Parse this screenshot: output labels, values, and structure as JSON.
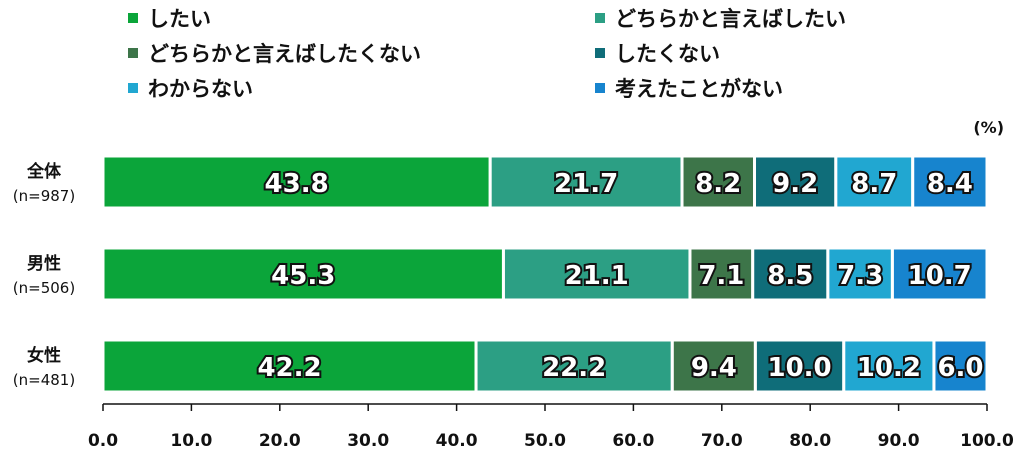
{
  "chart_data": {
    "type": "bar",
    "orientation": "horizontal",
    "stacked": true,
    "unit": "(%)",
    "categories": [
      {
        "name": "全体",
        "sub": "(n=987)"
      },
      {
        "name": "男性",
        "sub": "(n=506)"
      },
      {
        "name": "女性",
        "sub": "(n=481)"
      }
    ],
    "series": [
      {
        "name": "したい",
        "color": "#0ba53a",
        "values": [
          43.8,
          45.3,
          42.2
        ]
      },
      {
        "name": "どちらかと言えばしたい",
        "color": "#2c9f84",
        "values": [
          21.7,
          21.1,
          22.2
        ]
      },
      {
        "name": "どちらかと言えばしたくない",
        "color": "#3d7549",
        "values": [
          8.2,
          7.1,
          9.4
        ]
      },
      {
        "name": "したくない",
        "color": "#0f6d79",
        "values": [
          9.2,
          8.5,
          10.0
        ]
      },
      {
        "name": "わからない",
        "color": "#21a7d1",
        "values": [
          8.7,
          7.3,
          10.2
        ]
      },
      {
        "name": "考えたことがない",
        "color": "#1784ce",
        "values": [
          8.4,
          10.7,
          6.0
        ]
      }
    ],
    "xlim": [
      0,
      100
    ],
    "xticks": [
      "0.0",
      "10.0",
      "20.0",
      "30.0",
      "40.0",
      "50.0",
      "60.0",
      "70.0",
      "80.0",
      "90.0",
      "100.0"
    ],
    "legend": "top",
    "grid": false
  }
}
